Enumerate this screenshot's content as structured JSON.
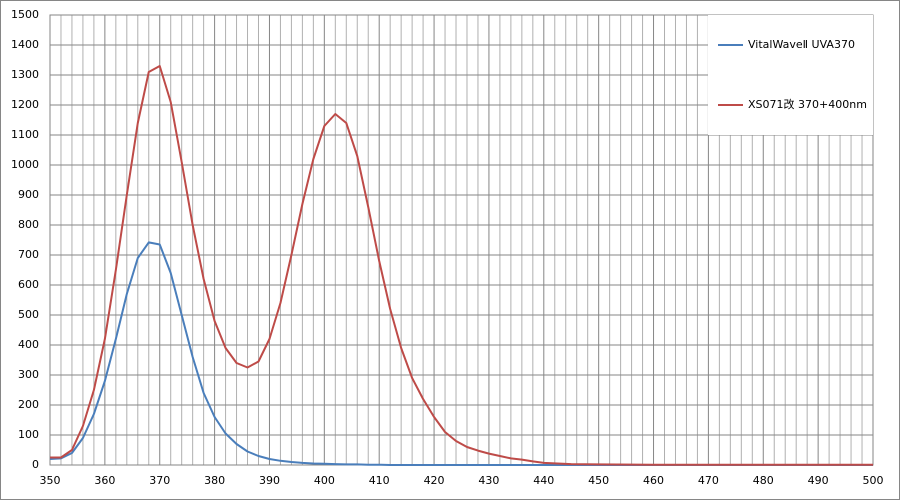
{
  "chart_data": {
    "type": "line",
    "x": [
      350,
      352,
      354,
      356,
      358,
      360,
      362,
      364,
      366,
      368,
      370,
      372,
      374,
      376,
      378,
      380,
      382,
      384,
      386,
      388,
      390,
      392,
      394,
      396,
      398,
      400,
      402,
      404,
      406,
      408,
      410,
      412,
      414,
      416,
      418,
      420,
      422,
      424,
      426,
      428,
      430,
      432,
      434,
      436,
      438,
      440,
      445,
      450,
      460,
      470,
      480,
      490,
      500
    ],
    "series": [
      {
        "name": "VitalWaveⅡ UVA370",
        "color": "#4a7ebb",
        "values": [
          20,
          22,
          40,
          90,
          170,
          280,
          420,
          570,
          690,
          742,
          735,
          640,
          500,
          360,
          240,
          160,
          105,
          70,
          45,
          30,
          20,
          14,
          10,
          7,
          5,
          4,
          3,
          2,
          2,
          1,
          1,
          0,
          0,
          0,
          0,
          0,
          0,
          0,
          0,
          0,
          0,
          0,
          0,
          0,
          0,
          0,
          0,
          0,
          0,
          0,
          0,
          0,
          0
        ]
      },
      {
        "name": "XS071改 370+400nm",
        "color": "#be4b48",
        "values": [
          25,
          25,
          50,
          130,
          250,
          420,
          650,
          900,
          1140,
          1310,
          1330,
          1210,
          1010,
          800,
          620,
          480,
          390,
          340,
          325,
          345,
          420,
          540,
          700,
          870,
          1020,
          1130,
          1170,
          1140,
          1030,
          860,
          680,
          520,
          390,
          290,
          220,
          160,
          110,
          80,
          60,
          48,
          38,
          30,
          22,
          18,
          12,
          7,
          3,
          2,
          1,
          1,
          1,
          1,
          1
        ]
      }
    ],
    "xlim": [
      350,
      500
    ],
    "xticks": [
      350,
      360,
      370,
      380,
      390,
      400,
      410,
      420,
      430,
      440,
      450,
      460,
      470,
      480,
      490,
      500
    ],
    "ylim": [
      0,
      1500
    ],
    "yticks": [
      0,
      100,
      200,
      300,
      400,
      500,
      600,
      700,
      800,
      900,
      1000,
      1100,
      1200,
      1300,
      1400,
      1500
    ],
    "grid": true,
    "minor_grid": true,
    "legend": "right"
  }
}
